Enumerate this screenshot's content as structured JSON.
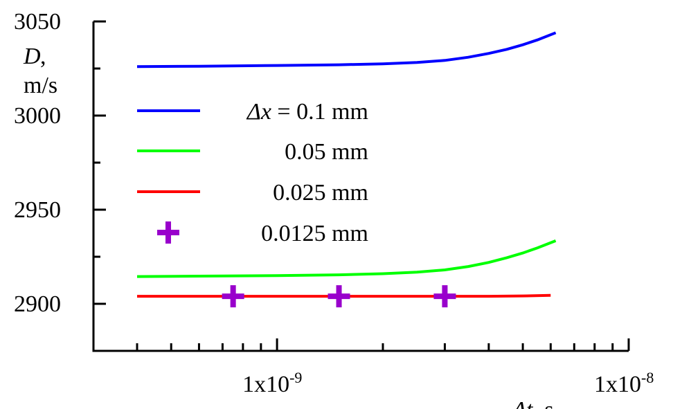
{
  "chart_data": {
    "type": "line",
    "xscale": "log",
    "xlim": [
      4e-10,
      1e-08
    ],
    "ylim": [
      2875,
      3050
    ],
    "grid": false,
    "y_ticks": [
      {
        "value": 2900,
        "label": "2900"
      },
      {
        "value": 2950,
        "label": "2950"
      },
      {
        "value": 3000,
        "label": "3000"
      },
      {
        "value": 3050,
        "label": "3050"
      }
    ],
    "y_minor_ticks": [
      2925,
      2975,
      3025
    ],
    "x_ticks": [
      {
        "value": 1e-09,
        "base": "1x10",
        "exp": "-9"
      },
      {
        "value": 1e-08,
        "base": "1x10",
        "exp": "-8"
      }
    ],
    "x_minor_ticks": [
      4e-10,
      5e-10,
      6e-10,
      7e-10,
      8e-10,
      9e-10,
      2e-09,
      3e-09,
      4e-09,
      5e-09,
      6e-09,
      7e-09,
      8e-09,
      9e-09
    ],
    "ylabel": {
      "symbol": "D",
      "unit": "m/s"
    },
    "xlabel": {
      "symbol": "Δt",
      "unit": "s"
    },
    "legend_position": "upper-left",
    "legend_prefix": {
      "symbol": "Δx",
      "eq": " = "
    },
    "series": [
      {
        "name": "0.1 mm",
        "color": "#0000ff",
        "style": "line",
        "x": [
          4e-10,
          6e-10,
          1e-09,
          1.5e-09,
          2e-09,
          2.5e-09,
          3e-09,
          3.5e-09,
          4e-09,
          4.5e-09,
          5e-09,
          5.5e-09,
          6.2e-09
        ],
        "y": [
          3026,
          3026.2,
          3026.6,
          3027,
          3027.5,
          3028.2,
          3029.3,
          3031,
          3033,
          3035.2,
          3037.6,
          3040.2,
          3044
        ]
      },
      {
        "name": "0.05 mm",
        "color": "#00ff00",
        "style": "line",
        "x": [
          4e-10,
          6e-10,
          1e-09,
          1.5e-09,
          2e-09,
          2.5e-09,
          3e-09,
          3.5e-09,
          4e-09,
          4.5e-09,
          5e-09,
          5.5e-09,
          6.2e-09
        ],
        "y": [
          2914.5,
          2914.7,
          2915,
          2915.4,
          2916,
          2916.8,
          2918,
          2919.8,
          2922,
          2924.5,
          2927,
          2929.7,
          2933.5
        ]
      },
      {
        "name": "0.025 mm",
        "color": "#ff0000",
        "style": "line",
        "x": [
          4e-10,
          1e-09,
          2e-09,
          3e-09,
          4e-09,
          5e-09,
          6e-09
        ],
        "y": [
          2904,
          2904,
          2904,
          2904,
          2904,
          2904.2,
          2904.5
        ]
      },
      {
        "name": "0.0125 mm",
        "color": "#9900cc",
        "style": "marker",
        "marker": "plus",
        "x": [
          7.5e-10,
          1.5e-09,
          3e-09
        ],
        "y": [
          2904,
          2904,
          2904
        ]
      }
    ]
  }
}
